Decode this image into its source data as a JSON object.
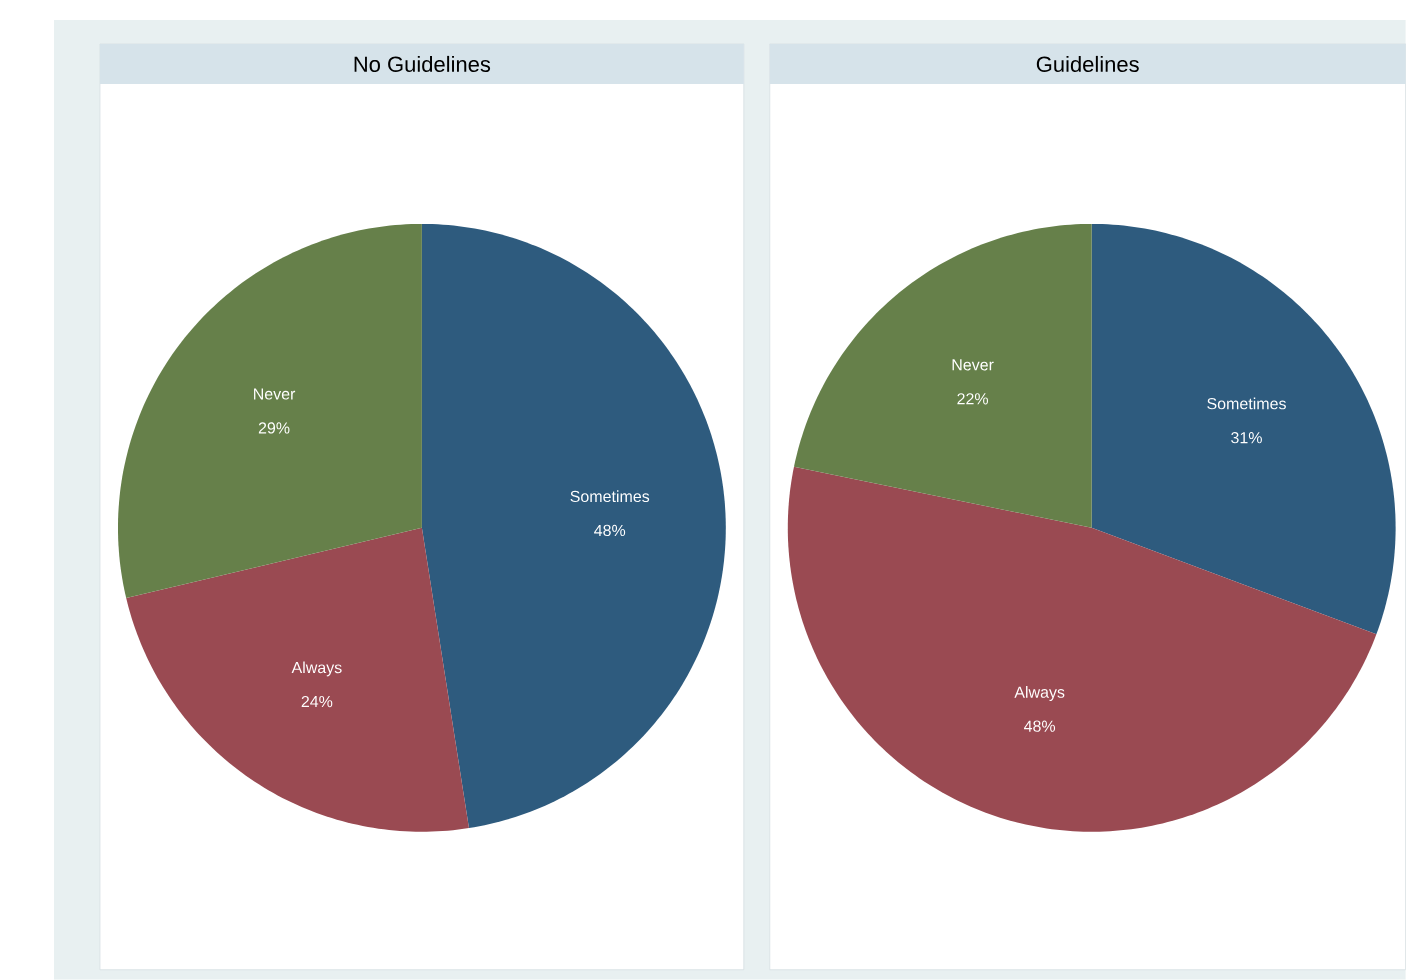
{
  "chart_data": [
    {
      "type": "pie",
      "title": "No Guidelines",
      "categories": [
        "Sometimes",
        "Always",
        "Never"
      ],
      "values": [
        48,
        24,
        29
      ],
      "colors": [
        "#2e5b7e",
        "#9a4a52",
        "#66804a"
      ],
      "value_labels": [
        "48%",
        "24%",
        "29%"
      ]
    },
    {
      "type": "pie",
      "title": "Guidelines",
      "categories": [
        "Sometimes",
        "Always",
        "Never"
      ],
      "values": [
        31,
        48,
        22
      ],
      "colors": [
        "#2e5b7e",
        "#9a4a52",
        "#66804a"
      ],
      "value_labels": [
        "31%",
        "48%",
        "22%"
      ]
    }
  ]
}
